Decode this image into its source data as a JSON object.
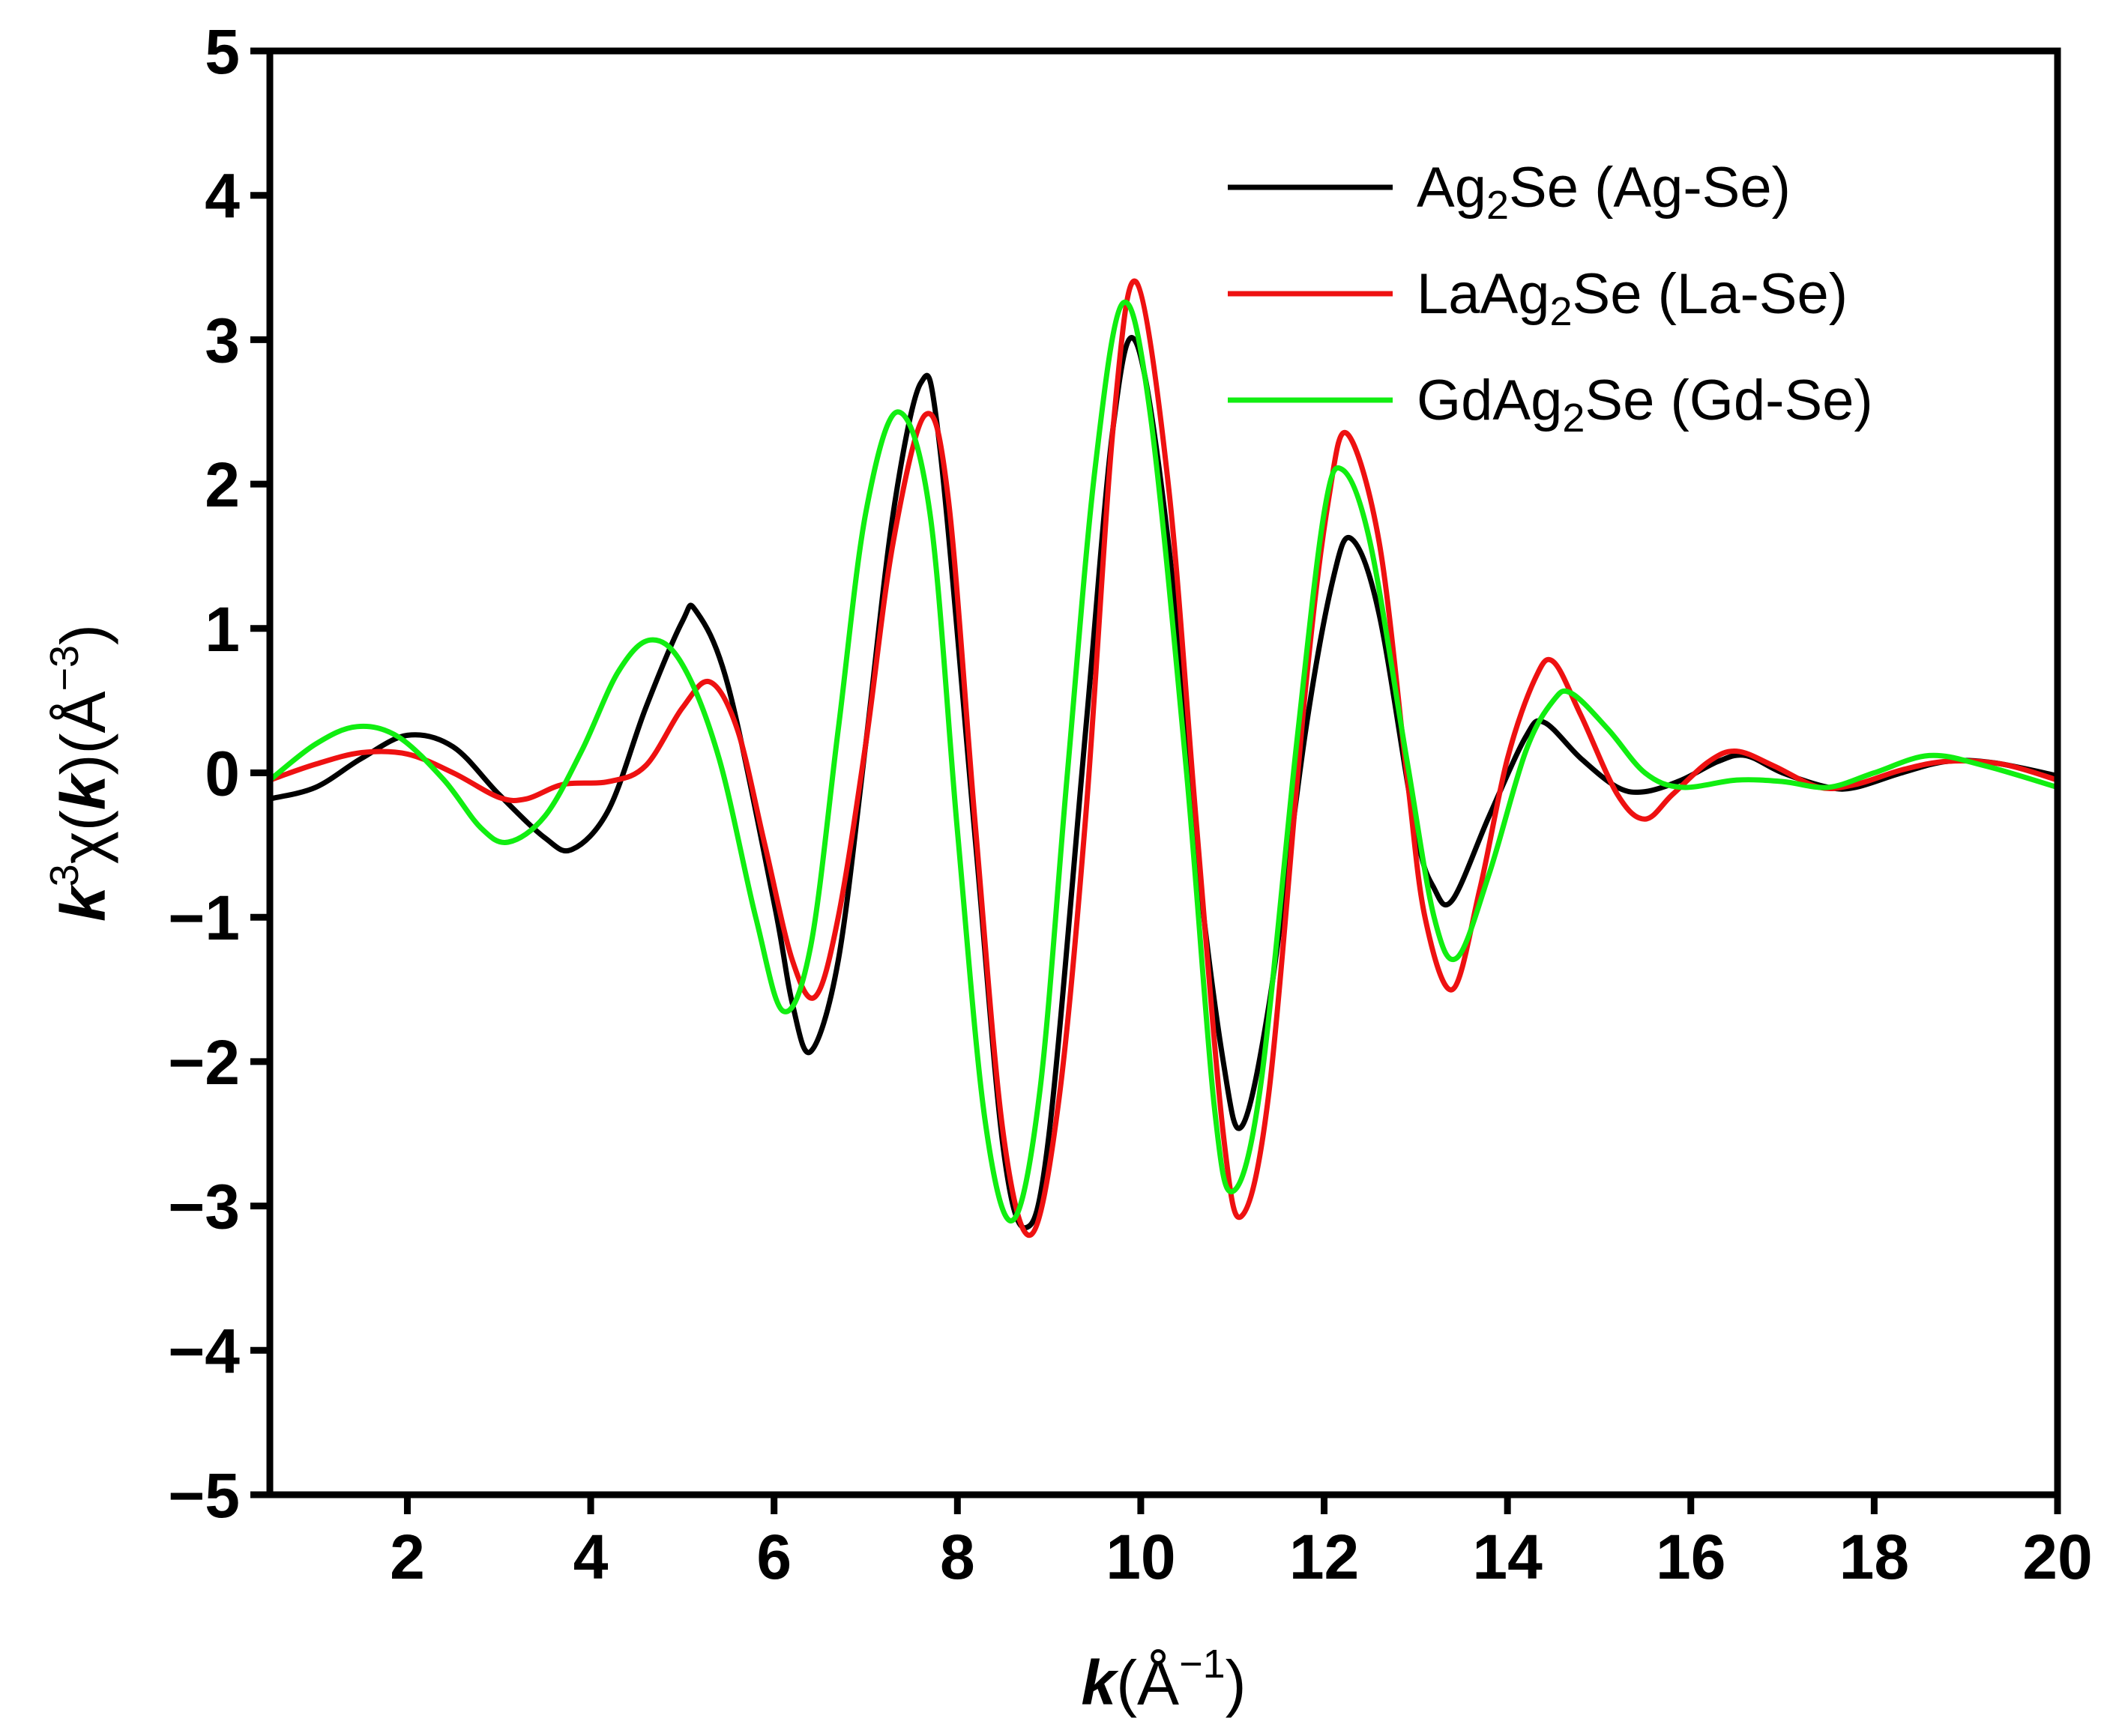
{
  "chart_data": {
    "type": "line",
    "xlim": [
      0.5,
      20
    ],
    "ylim": [
      -5,
      5
    ],
    "x_ticks": [
      2,
      4,
      6,
      8,
      10,
      12,
      14,
      16,
      18,
      20
    ],
    "y_ticks": [
      5,
      4,
      3,
      2,
      1,
      0,
      -1,
      -2,
      -3,
      -4,
      -5
    ],
    "x_tick_labels": [
      "2",
      "4",
      "6",
      "8",
      "10",
      "12",
      "14",
      "16",
      "18",
      "20"
    ],
    "y_tick_labels": [
      "5",
      "4",
      "3",
      "2",
      "1",
      "0",
      "−1",
      "−2",
      "−3",
      "−4",
      "−5"
    ],
    "xlabel": {
      "var": "k",
      "unit_open": "(Å",
      "exp": "−1",
      "unit_close": ")"
    },
    "ylabel": {
      "k": "k",
      "k_exp": "3",
      "chi": "χ(",
      "k2": "k",
      "unit": ")(Å",
      "exp": "−3",
      "close": ")"
    },
    "grid": false,
    "legend_position": "top-right",
    "series": [
      {
        "name": "Ag2Se (Ag-Se)",
        "legend": {
          "a": "Ag",
          "sub": "2",
          "b": "Se (Ag-Se)"
        },
        "color": "#000000",
        "points": [
          [
            0.5,
            -0.18
          ],
          [
            1.0,
            -0.1
          ],
          [
            1.5,
            0.1
          ],
          [
            2.0,
            0.26
          ],
          [
            2.5,
            0.18
          ],
          [
            3.0,
            -0.15
          ],
          [
            3.5,
            -0.45
          ],
          [
            3.8,
            -0.53
          ],
          [
            4.2,
            -0.25
          ],
          [
            4.6,
            0.45
          ],
          [
            5.0,
            1.05
          ],
          [
            5.15,
            1.12
          ],
          [
            5.5,
            0.6
          ],
          [
            6.0,
            -0.9
          ],
          [
            6.2,
            -1.6
          ],
          [
            6.4,
            -1.93
          ],
          [
            6.7,
            -1.3
          ],
          [
            7.0,
            0.2
          ],
          [
            7.3,
            1.8
          ],
          [
            7.6,
            2.7
          ],
          [
            7.8,
            2.3
          ],
          [
            8.2,
            -0.5
          ],
          [
            8.5,
            -2.6
          ],
          [
            8.75,
            -3.15
          ],
          [
            9.0,
            -2.5
          ],
          [
            9.4,
            0.3
          ],
          [
            9.7,
            2.4
          ],
          [
            9.95,
            2.98
          ],
          [
            10.3,
            1.6
          ],
          [
            10.6,
            -0.5
          ],
          [
            10.9,
            -2.0
          ],
          [
            11.1,
            -2.45
          ],
          [
            11.4,
            -1.6
          ],
          [
            11.8,
            0.3
          ],
          [
            12.1,
            1.35
          ],
          [
            12.3,
            1.62
          ],
          [
            12.6,
            1.1
          ],
          [
            13.0,
            -0.4
          ],
          [
            13.2,
            -0.8
          ],
          [
            13.4,
            -0.88
          ],
          [
            13.8,
            -0.3
          ],
          [
            14.2,
            0.25
          ],
          [
            14.4,
            0.35
          ],
          [
            14.8,
            0.1
          ],
          [
            15.2,
            -0.1
          ],
          [
            15.5,
            -0.13
          ],
          [
            15.9,
            -0.05
          ],
          [
            16.3,
            0.08
          ],
          [
            16.6,
            0.12
          ],
          [
            17.0,
            0.0
          ],
          [
            17.5,
            -0.1
          ],
          [
            17.8,
            -0.1
          ],
          [
            18.3,
            0.0
          ],
          [
            18.8,
            0.08
          ],
          [
            19.3,
            0.07
          ],
          [
            20.0,
            -0.02
          ]
        ]
      },
      {
        "name": "LaAg2Se (La-Se)",
        "legend": {
          "a": "LaAg",
          "sub": "2",
          "b": "Se (La-Se)"
        },
        "color": "#ee1111",
        "points": [
          [
            0.5,
            -0.05
          ],
          [
            1.0,
            0.06
          ],
          [
            1.5,
            0.14
          ],
          [
            2.0,
            0.13
          ],
          [
            2.5,
            0.0
          ],
          [
            3.0,
            -0.17
          ],
          [
            3.3,
            -0.18
          ],
          [
            3.7,
            -0.08
          ],
          [
            4.2,
            -0.06
          ],
          [
            4.6,
            0.05
          ],
          [
            5.0,
            0.45
          ],
          [
            5.3,
            0.63
          ],
          [
            5.6,
            0.3
          ],
          [
            5.9,
            -0.5
          ],
          [
            6.2,
            -1.3
          ],
          [
            6.45,
            -1.55
          ],
          [
            6.7,
            -1.0
          ],
          [
            7.0,
            0.2
          ],
          [
            7.3,
            1.6
          ],
          [
            7.65,
            2.48
          ],
          [
            7.9,
            1.9
          ],
          [
            8.2,
            -0.4
          ],
          [
            8.5,
            -2.5
          ],
          [
            8.8,
            -3.2
          ],
          [
            9.1,
            -2.3
          ],
          [
            9.4,
            -0.3
          ],
          [
            9.7,
            2.4
          ],
          [
            9.95,
            3.4
          ],
          [
            10.3,
            2.0
          ],
          [
            10.6,
            -0.3
          ],
          [
            10.9,
            -2.5
          ],
          [
            11.1,
            -3.07
          ],
          [
            11.4,
            -2.2
          ],
          [
            11.8,
            0.6
          ],
          [
            12.05,
            1.9
          ],
          [
            12.25,
            2.35
          ],
          [
            12.6,
            1.6
          ],
          [
            12.9,
            0.0
          ],
          [
            13.1,
            -1.0
          ],
          [
            13.4,
            -1.5
          ],
          [
            13.7,
            -0.8
          ],
          [
            14.0,
            0.1
          ],
          [
            14.3,
            0.65
          ],
          [
            14.5,
            0.77
          ],
          [
            14.8,
            0.4
          ],
          [
            15.2,
            -0.15
          ],
          [
            15.5,
            -0.32
          ],
          [
            15.8,
            -0.15
          ],
          [
            16.2,
            0.08
          ],
          [
            16.5,
            0.15
          ],
          [
            16.9,
            0.05
          ],
          [
            17.4,
            -0.1
          ],
          [
            17.8,
            -0.08
          ],
          [
            18.3,
            0.02
          ],
          [
            18.8,
            0.08
          ],
          [
            19.4,
            0.06
          ],
          [
            20.0,
            -0.05
          ]
        ]
      },
      {
        "name": "GdAg2Se (Gd-Se)",
        "legend": {
          "a": "GdAg",
          "sub": "2",
          "b": "Se (Gd-Se)"
        },
        "color": "#11ee11",
        "points": [
          [
            0.5,
            -0.05
          ],
          [
            1.0,
            0.2
          ],
          [
            1.45,
            0.32
          ],
          [
            1.9,
            0.25
          ],
          [
            2.4,
            -0.05
          ],
          [
            2.8,
            -0.38
          ],
          [
            3.1,
            -0.48
          ],
          [
            3.5,
            -0.3
          ],
          [
            3.9,
            0.15
          ],
          [
            4.3,
            0.7
          ],
          [
            4.65,
            0.92
          ],
          [
            5.0,
            0.75
          ],
          [
            5.4,
            0.1
          ],
          [
            5.8,
            -1.0
          ],
          [
            6.1,
            -1.65
          ],
          [
            6.4,
            -1.2
          ],
          [
            6.7,
            0.3
          ],
          [
            7.0,
            1.8
          ],
          [
            7.35,
            2.5
          ],
          [
            7.7,
            1.8
          ],
          [
            8.0,
            -0.4
          ],
          [
            8.3,
            -2.4
          ],
          [
            8.6,
            -3.1
          ],
          [
            8.9,
            -2.2
          ],
          [
            9.2,
            0.0
          ],
          [
            9.5,
            2.1
          ],
          [
            9.8,
            3.25
          ],
          [
            10.1,
            2.5
          ],
          [
            10.5,
            0.0
          ],
          [
            10.8,
            -2.3
          ],
          [
            11.0,
            -2.9
          ],
          [
            11.3,
            -2.2
          ],
          [
            11.7,
            0.2
          ],
          [
            12.0,
            1.8
          ],
          [
            12.2,
            2.1
          ],
          [
            12.5,
            1.6
          ],
          [
            12.9,
            0.1
          ],
          [
            13.2,
            -1.0
          ],
          [
            13.45,
            -1.28
          ],
          [
            13.8,
            -0.7
          ],
          [
            14.2,
            0.15
          ],
          [
            14.5,
            0.5
          ],
          [
            14.7,
            0.55
          ],
          [
            15.1,
            0.3
          ],
          [
            15.5,
            0.0
          ],
          [
            15.9,
            -0.1
          ],
          [
            16.5,
            -0.05
          ],
          [
            17.0,
            -0.06
          ],
          [
            17.5,
            -0.1
          ],
          [
            18.0,
            0.0
          ],
          [
            18.6,
            0.12
          ],
          [
            19.2,
            0.05
          ],
          [
            20.0,
            -0.1
          ]
        ]
      }
    ]
  }
}
